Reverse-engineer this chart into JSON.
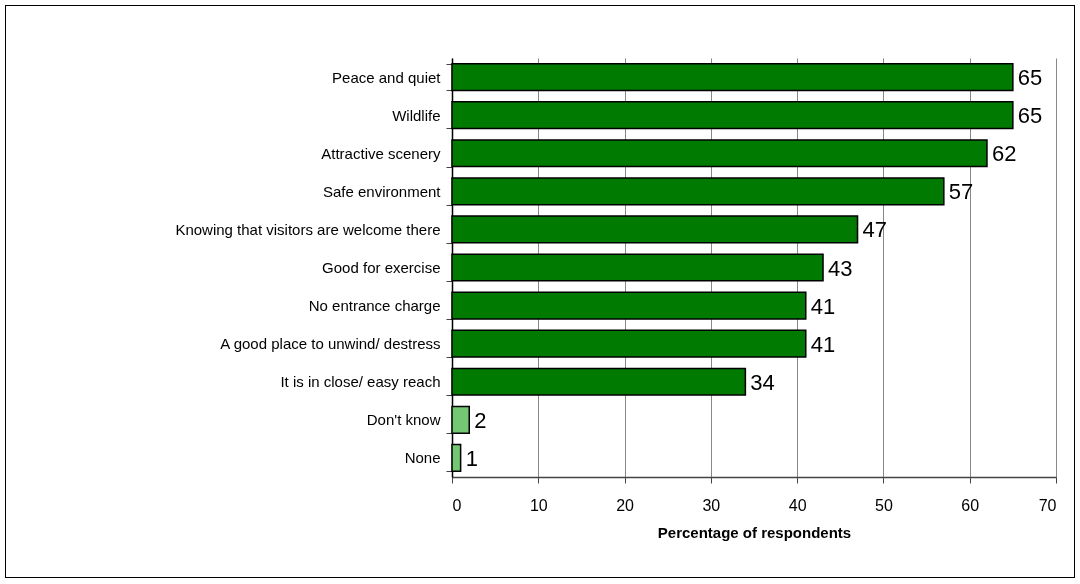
{
  "chart_data": {
    "type": "bar",
    "orientation": "horizontal",
    "categories": [
      "Peace and quiet",
      "Wildlife",
      "Attractive scenery",
      "Safe environment",
      "Knowing that visitors are welcome there",
      "Good for exercise",
      "No entrance charge",
      "A good place to unwind/ destress",
      "It is in close/ easy reach",
      "Don't know",
      "None"
    ],
    "values": [
      65,
      65,
      62,
      57,
      47,
      43,
      41,
      41,
      34,
      2,
      1
    ],
    "colors": [
      "#007a00",
      "#007a00",
      "#007a00",
      "#007a00",
      "#007a00",
      "#007a00",
      "#007a00",
      "#007a00",
      "#007a00",
      "#74c874",
      "#74c874"
    ],
    "xlim": [
      0,
      70
    ],
    "xticks": [
      0,
      10,
      20,
      30,
      40,
      50,
      60,
      70
    ],
    "xlabel": "Percentage of respondents",
    "grid": "x",
    "data_labels": true
  }
}
